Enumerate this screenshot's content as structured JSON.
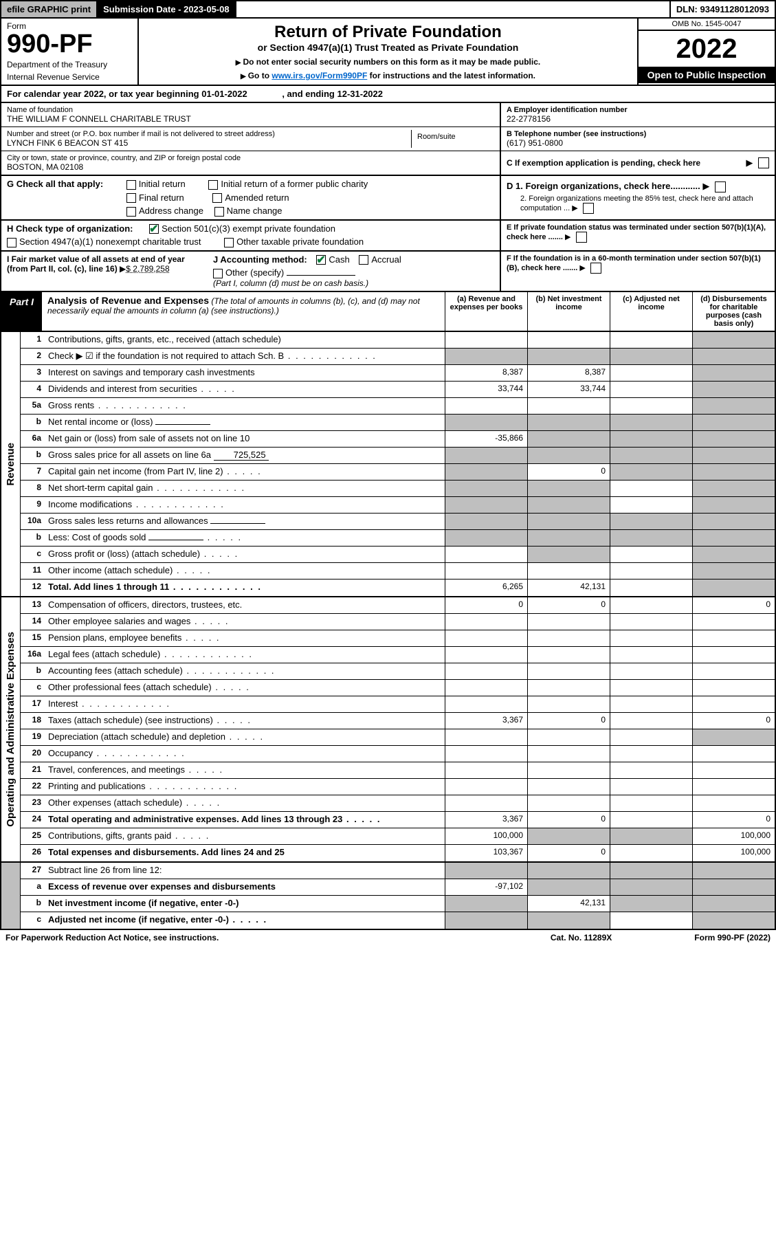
{
  "colors": {
    "black": "#000000",
    "white": "#ffffff",
    "shaded": "#bfbfbf",
    "btn_gray": "#b8b8b8",
    "link": "#0066cc",
    "check_green": "#0a7a3a"
  },
  "top_bar": {
    "efile": "efile GRAPHIC print",
    "submission": "Submission Date - 2023-05-08",
    "dln": "DLN: 93491128012093"
  },
  "header": {
    "form_word": "Form",
    "form_num": "990-PF",
    "dept": "Department of the Treasury",
    "irs": "Internal Revenue Service",
    "title": "Return of Private Foundation",
    "subtitle": "or Section 4947(a)(1) Trust Treated as Private Foundation",
    "instr1": "Do not enter social security numbers on this form as it may be made public.",
    "instr2_pre": "Go to ",
    "instr2_link": "www.irs.gov/Form990PF",
    "instr2_post": " for instructions and the latest information.",
    "omb": "OMB No. 1545-0047",
    "year": "2022",
    "open": "Open to Public Inspection"
  },
  "cal_year": {
    "pre": "For calendar year 2022, or tax year beginning ",
    "begin": "01-01-2022",
    "mid": ", and ending ",
    "end": "12-31-2022"
  },
  "info": {
    "name_label": "Name of foundation",
    "name": "THE WILLIAM F CONNELL CHARITABLE TRUST",
    "addr_label": "Number and street (or P.O. box number if mail is not delivered to street address)",
    "addr": "LYNCH FINK 6 BEACON ST 415",
    "room_label": "Room/suite",
    "city_label": "City or town, state or province, country, and ZIP or foreign postal code",
    "city": "BOSTON, MA  02108",
    "a_label": "A Employer identification number",
    "a_val": "22-2778156",
    "b_label": "B Telephone number (see instructions)",
    "b_val": "(617) 951-0800",
    "c_label": "C If exemption application is pending, check here"
  },
  "g": {
    "label": "G Check all that apply:",
    "opts": [
      "Initial return",
      "Final return",
      "Address change",
      "Initial return of a former public charity",
      "Amended return",
      "Name change"
    ]
  },
  "h": {
    "label": "H Check type of organization:",
    "opt1": "Section 501(c)(3) exempt private foundation",
    "opt2": "Section 4947(a)(1) nonexempt charitable trust",
    "opt3": "Other taxable private foundation"
  },
  "d": {
    "d1": "D 1. Foreign organizations, check here............",
    "d2": "2. Foreign organizations meeting the 85% test, check here and attach computation ...",
    "e": "E  If private foundation status was terminated under section 507(b)(1)(A), check here .......",
    "f": "F  If the foundation is in a 60-month termination under section 507(b)(1)(B), check here ......."
  },
  "i": {
    "label": "I Fair market value of all assets at end of year (from Part II, col. (c), line 16)",
    "val": "$  2,789,258"
  },
  "j": {
    "label": "J Accounting method:",
    "cash": "Cash",
    "accrual": "Accrual",
    "other": "Other (specify)",
    "note": "(Part I, column (d) must be on cash basis.)"
  },
  "part1": {
    "tag": "Part I",
    "title": "Analysis of Revenue and Expenses",
    "sub": "(The total of amounts in columns (b), (c), and (d) may not necessarily equal the amounts in column (a) (see instructions).)",
    "cols": {
      "a": "(a)   Revenue and expenses per books",
      "b": "(b)   Net investment income",
      "c": "(c)  Adjusted net income",
      "d": "(d)  Disbursements for charitable purposes (cash basis only)"
    }
  },
  "side_labels": {
    "revenue": "Revenue",
    "expenses": "Operating and Administrative Expenses"
  },
  "rows": [
    {
      "n": "1",
      "label": "Contributions, gifts, grants, etc., received (attach schedule)",
      "a": "",
      "b": "",
      "c": "",
      "d": "",
      "shade_d": true
    },
    {
      "n": "2",
      "label": "Check ▶ ☑ if the foundation is not required to attach Sch. B",
      "dots": true,
      "a": "",
      "b": "",
      "c": "",
      "d": "",
      "shade_a": true,
      "shade_b": true,
      "shade_c": true,
      "shade_d": true
    },
    {
      "n": "3",
      "label": "Interest on savings and temporary cash investments",
      "a": "8,387",
      "b": "8,387",
      "c": "",
      "d": "",
      "shade_d": true
    },
    {
      "n": "4",
      "label": "Dividends and interest from securities",
      "dots": "short",
      "a": "33,744",
      "b": "33,744",
      "c": "",
      "d": "",
      "shade_d": true
    },
    {
      "n": "5a",
      "label": "Gross rents",
      "dots": true,
      "a": "",
      "b": "",
      "c": "",
      "d": "",
      "shade_d": true
    },
    {
      "n": "b",
      "label": "Net rental income or (loss)",
      "inline": "",
      "a": "",
      "b": "",
      "c": "",
      "d": "",
      "shade_a": true,
      "shade_b": true,
      "shade_c": true,
      "shade_d": true
    },
    {
      "n": "6a",
      "label": "Net gain or (loss) from sale of assets not on line 10",
      "a": "-35,866",
      "b": "",
      "c": "",
      "d": "",
      "shade_b": true,
      "shade_c": true,
      "shade_d": true
    },
    {
      "n": "b",
      "label": "Gross sales price for all assets on line 6a",
      "inline": "725,525",
      "a": "",
      "b": "",
      "c": "",
      "d": "",
      "shade_a": true,
      "shade_b": true,
      "shade_c": true,
      "shade_d": true
    },
    {
      "n": "7",
      "label": "Capital gain net income (from Part IV, line 2)",
      "dots": "short",
      "a": "",
      "b": "0",
      "c": "",
      "d": "",
      "shade_a": true,
      "shade_c": true,
      "shade_d": true
    },
    {
      "n": "8",
      "label": "Net short-term capital gain",
      "dots": true,
      "a": "",
      "b": "",
      "c": "",
      "d": "",
      "shade_a": true,
      "shade_b": true,
      "shade_d": true
    },
    {
      "n": "9",
      "label": "Income modifications",
      "dots": true,
      "a": "",
      "b": "",
      "c": "",
      "d": "",
      "shade_a": true,
      "shade_b": true,
      "shade_d": true
    },
    {
      "n": "10a",
      "label": "Gross sales less returns and allowances",
      "inline": "",
      "a": "",
      "b": "",
      "c": "",
      "d": "",
      "shade_a": true,
      "shade_b": true,
      "shade_c": true,
      "shade_d": true
    },
    {
      "n": "b",
      "label": "Less: Cost of goods sold",
      "dots": "short",
      "inline": "",
      "a": "",
      "b": "",
      "c": "",
      "d": "",
      "shade_a": true,
      "shade_b": true,
      "shade_c": true,
      "shade_d": true
    },
    {
      "n": "c",
      "label": "Gross profit or (loss) (attach schedule)",
      "dots": "short",
      "a": "",
      "b": "",
      "c": "",
      "d": "",
      "shade_b": true,
      "shade_d": true
    },
    {
      "n": "11",
      "label": "Other income (attach schedule)",
      "dots": "short",
      "a": "",
      "b": "",
      "c": "",
      "d": "",
      "shade_d": true
    },
    {
      "n": "12",
      "label": "Total. Add lines 1 through 11",
      "bold": true,
      "dots": true,
      "a": "6,265",
      "b": "42,131",
      "c": "",
      "d": "",
      "shade_d": true
    }
  ],
  "exp_rows": [
    {
      "n": "13",
      "label": "Compensation of officers, directors, trustees, etc.",
      "a": "0",
      "b": "0",
      "c": "",
      "d": "0"
    },
    {
      "n": "14",
      "label": "Other employee salaries and wages",
      "dots": "short",
      "a": "",
      "b": "",
      "c": "",
      "d": ""
    },
    {
      "n": "15",
      "label": "Pension plans, employee benefits",
      "dots": "short",
      "a": "",
      "b": "",
      "c": "",
      "d": ""
    },
    {
      "n": "16a",
      "label": "Legal fees (attach schedule)",
      "dots": true,
      "a": "",
      "b": "",
      "c": "",
      "d": ""
    },
    {
      "n": "b",
      "label": "Accounting fees (attach schedule)",
      "dots": true,
      "a": "",
      "b": "",
      "c": "",
      "d": ""
    },
    {
      "n": "c",
      "label": "Other professional fees (attach schedule)",
      "dots": "short",
      "a": "",
      "b": "",
      "c": "",
      "d": ""
    },
    {
      "n": "17",
      "label": "Interest",
      "dots": true,
      "a": "",
      "b": "",
      "c": "",
      "d": ""
    },
    {
      "n": "18",
      "label": "Taxes (attach schedule) (see instructions)",
      "dots": "short",
      "a": "3,367",
      "b": "0",
      "c": "",
      "d": "0"
    },
    {
      "n": "19",
      "label": "Depreciation (attach schedule) and depletion",
      "dots": "short",
      "a": "",
      "b": "",
      "c": "",
      "d": "",
      "shade_d": true
    },
    {
      "n": "20",
      "label": "Occupancy",
      "dots": true,
      "a": "",
      "b": "",
      "c": "",
      "d": ""
    },
    {
      "n": "21",
      "label": "Travel, conferences, and meetings",
      "dots": "short",
      "a": "",
      "b": "",
      "c": "",
      "d": ""
    },
    {
      "n": "22",
      "label": "Printing and publications",
      "dots": true,
      "a": "",
      "b": "",
      "c": "",
      "d": ""
    },
    {
      "n": "23",
      "label": "Other expenses (attach schedule)",
      "dots": "short",
      "a": "",
      "b": "",
      "c": "",
      "d": ""
    },
    {
      "n": "24",
      "label": "Total operating and administrative expenses. Add lines 13 through 23",
      "bold": true,
      "dots": "short",
      "a": "3,367",
      "b": "0",
      "c": "",
      "d": "0"
    },
    {
      "n": "25",
      "label": "Contributions, gifts, grants paid",
      "dots": "short",
      "a": "100,000",
      "b": "",
      "c": "",
      "d": "100,000",
      "shade_b": true,
      "shade_c": true
    },
    {
      "n": "26",
      "label": "Total expenses and disbursements. Add lines 24 and 25",
      "bold": true,
      "a": "103,367",
      "b": "0",
      "c": "",
      "d": "100,000"
    }
  ],
  "final_rows": [
    {
      "n": "27",
      "label": "Subtract line 26 from line 12:",
      "a": "",
      "b": "",
      "c": "",
      "d": "",
      "shade_a": true,
      "shade_b": true,
      "shade_c": true,
      "shade_d": true
    },
    {
      "n": "a",
      "label": "Excess of revenue over expenses and disbursements",
      "bold": true,
      "a": "-97,102",
      "b": "",
      "c": "",
      "d": "",
      "shade_b": true,
      "shade_c": true,
      "shade_d": true
    },
    {
      "n": "b",
      "label": "Net investment income (if negative, enter -0-)",
      "bold": true,
      "a": "",
      "b": "42,131",
      "c": "",
      "d": "",
      "shade_a": true,
      "shade_c": true,
      "shade_d": true
    },
    {
      "n": "c",
      "label": "Adjusted net income (if negative, enter -0-)",
      "bold": true,
      "dots": "short",
      "a": "",
      "b": "",
      "c": "",
      "d": "",
      "shade_a": true,
      "shade_b": true,
      "shade_d": true
    }
  ],
  "footer": {
    "left": "For Paperwork Reduction Act Notice, see instructions.",
    "mid": "Cat. No. 11289X",
    "right": "Form 990-PF (2022)"
  }
}
